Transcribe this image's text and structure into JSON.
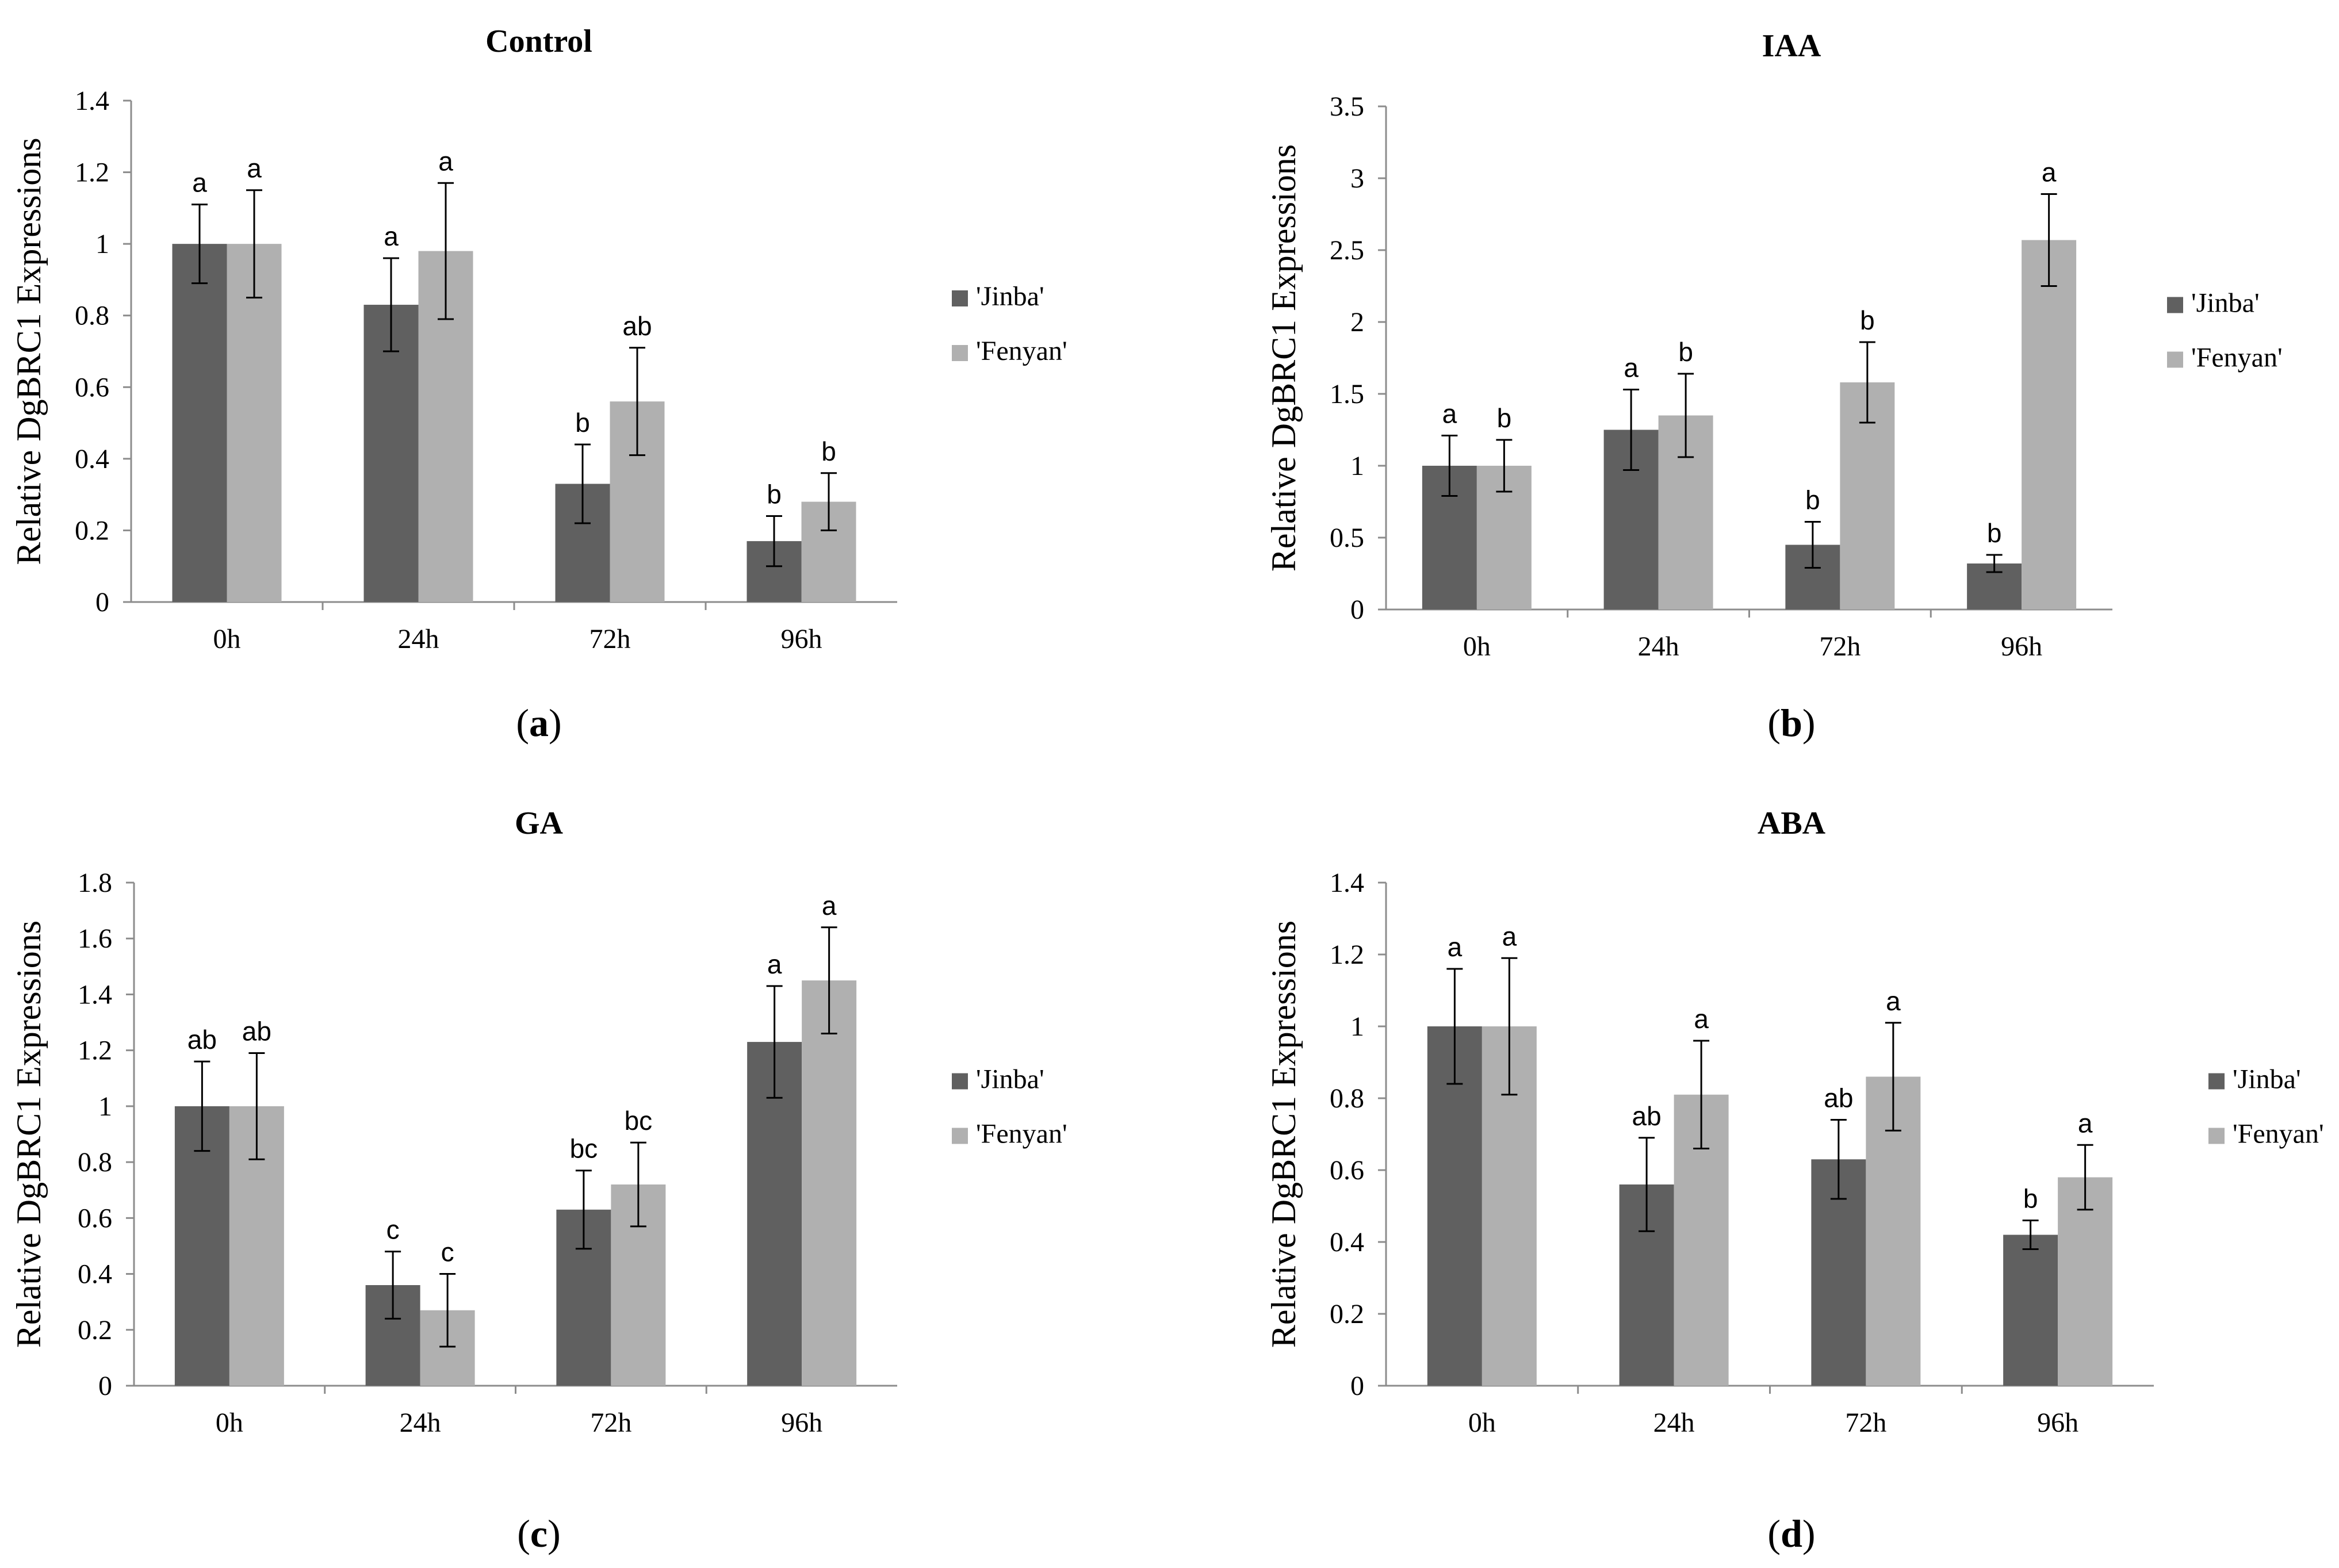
{
  "chart_data": [
    {
      "type": "bar",
      "title": "Control",
      "panel_label": "a",
      "ylabel": "Relative DgBRC1 Expressions",
      "xlabel": "",
      "categories": [
        "0h",
        "24h",
        "72h",
        "96h"
      ],
      "ylim": [
        0,
        1.4
      ],
      "yticks": [
        0,
        0.2,
        0.4,
        0.6,
        0.8,
        1,
        1.2,
        1.4
      ],
      "ytick_labels": [
        "0",
        "0.2",
        "0.4",
        "0.6",
        "0.8",
        "1",
        "1.2",
        "1.4"
      ],
      "legend_position": "right",
      "series": [
        {
          "name": "'Jinba'",
          "color": "#606060",
          "values": [
            1.0,
            0.83,
            0.33,
            0.17
          ],
          "errors": [
            0.11,
            0.13,
            0.11,
            0.07
          ],
          "labels": [
            "a",
            "a",
            "b",
            "b"
          ]
        },
        {
          "name": "'Fenyan'",
          "color": "#B0B0B0",
          "values": [
            1.0,
            0.98,
            0.56,
            0.28
          ],
          "errors": [
            0.15,
            0.19,
            0.15,
            0.08
          ],
          "labels": [
            "a",
            "a",
            "ab",
            "b"
          ]
        }
      ]
    },
    {
      "type": "bar",
      "title": "IAA",
      "panel_label": "b",
      "ylabel": "Relative DgBRC1 Expressions",
      "xlabel": "",
      "categories": [
        "0h",
        "24h",
        "72h",
        "96h"
      ],
      "ylim": [
        0,
        3.5
      ],
      "yticks": [
        0,
        0.5,
        1,
        1.5,
        2,
        2.5,
        3,
        3.5
      ],
      "ytick_labels": [
        "0",
        "0.5",
        "1",
        "1.5",
        "2",
        "2.5",
        "3",
        "3.5"
      ],
      "legend_position": "right",
      "series": [
        {
          "name": "'Jinba'",
          "color": "#606060",
          "values": [
            1.0,
            1.25,
            0.45,
            0.32
          ],
          "errors": [
            0.21,
            0.28,
            0.16,
            0.06
          ],
          "labels": [
            "a",
            "a",
            "b",
            "b"
          ]
        },
        {
          "name": "'Fenyan'",
          "color": "#B0B0B0",
          "values": [
            1.0,
            1.35,
            1.58,
            2.57
          ],
          "errors": [
            0.18,
            0.29,
            0.28,
            0.32
          ],
          "labels": [
            "b",
            "b",
            "b",
            "a"
          ]
        }
      ]
    },
    {
      "type": "bar",
      "title": "GA",
      "panel_label": "c",
      "ylabel": "Relative DgBRC1 Expressions",
      "xlabel": "",
      "categories": [
        "0h",
        "24h",
        "72h",
        "96h"
      ],
      "ylim": [
        0,
        1.8
      ],
      "yticks": [
        0,
        0.2,
        0.4,
        0.6,
        0.8,
        1,
        1.2,
        1.4,
        1.6,
        1.8
      ],
      "ytick_labels": [
        "0",
        "0.2",
        "0.4",
        "0.6",
        "0.8",
        "1",
        "1.2",
        "1.4",
        "1.6",
        "1.8"
      ],
      "legend_position": "right",
      "series": [
        {
          "name": "'Jinba'",
          "color": "#606060",
          "values": [
            1.0,
            0.36,
            0.63,
            1.23
          ],
          "errors": [
            0.16,
            0.12,
            0.14,
            0.2
          ],
          "labels": [
            "ab",
            "c",
            "bc",
            "a"
          ]
        },
        {
          "name": "'Fenyan'",
          "color": "#B0B0B0",
          "values": [
            1.0,
            0.27,
            0.72,
            1.45
          ],
          "errors": [
            0.19,
            0.13,
            0.15,
            0.19
          ],
          "labels": [
            "ab",
            "c",
            "bc",
            "a"
          ]
        }
      ]
    },
    {
      "type": "bar",
      "title": "ABA",
      "panel_label": "d",
      "ylabel": "Relative DgBRC1 Expressions",
      "xlabel": "",
      "categories": [
        "0h",
        "24h",
        "72h",
        "96h"
      ],
      "ylim": [
        0,
        1.4
      ],
      "yticks": [
        0,
        0.2,
        0.4,
        0.6,
        0.8,
        1,
        1.2,
        1.4
      ],
      "ytick_labels": [
        "0",
        "0.2",
        "0.4",
        "0.6",
        "0.8",
        "1",
        "1.2",
        "1.4"
      ],
      "legend_position": "right",
      "series": [
        {
          "name": "'Jinba'",
          "color": "#606060",
          "values": [
            1.0,
            0.56,
            0.63,
            0.42
          ],
          "errors": [
            0.16,
            0.13,
            0.11,
            0.04
          ],
          "labels": [
            "a",
            "ab",
            "ab",
            "b"
          ]
        },
        {
          "name": "'Fenyan'",
          "color": "#B0B0B0",
          "values": [
            1.0,
            0.81,
            0.86,
            0.58
          ],
          "errors": [
            0.19,
            0.15,
            0.15,
            0.09
          ],
          "labels": [
            "a",
            "a",
            "a",
            "a"
          ]
        }
      ]
    }
  ]
}
